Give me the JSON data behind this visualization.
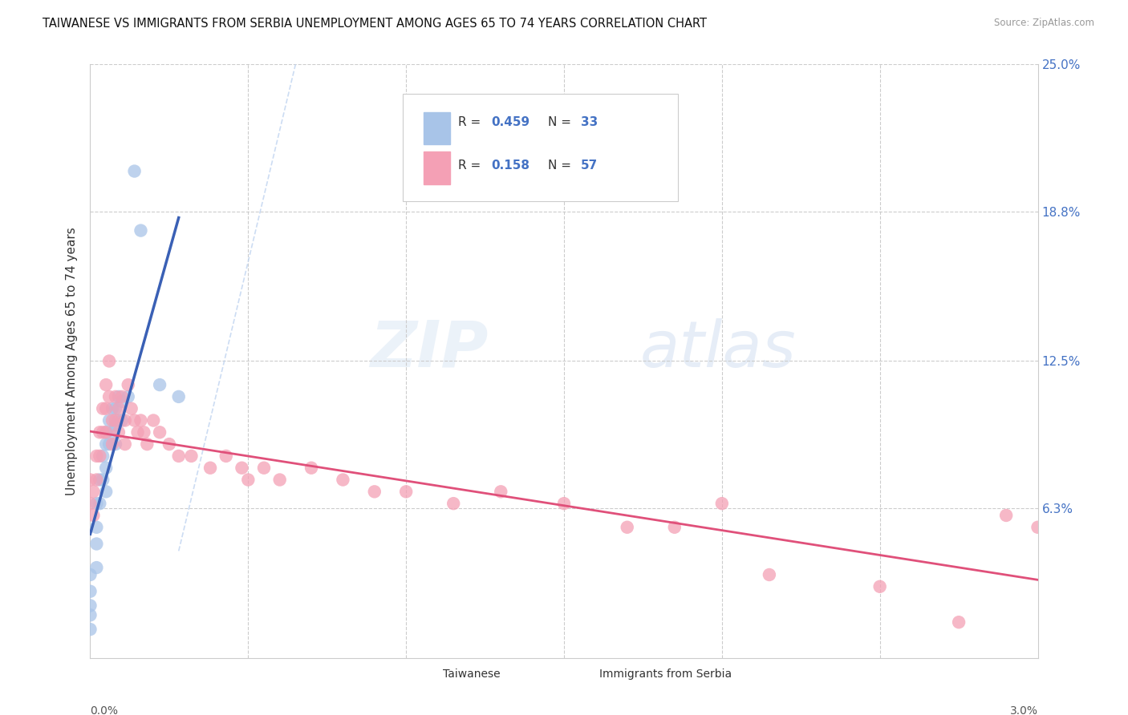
{
  "title": "TAIWANESE VS IMMIGRANTS FROM SERBIA UNEMPLOYMENT AMONG AGES 65 TO 74 YEARS CORRELATION CHART",
  "source": "Source: ZipAtlas.com",
  "ylabel": "Unemployment Among Ages 65 to 74 years",
  "xlim": [
    0.0,
    3.0
  ],
  "ylim": [
    0.0,
    25.0
  ],
  "ytick_vals": [
    0.0,
    6.3,
    12.5,
    18.8,
    25.0
  ],
  "ytick_labels": [
    "",
    "6.3%",
    "12.5%",
    "18.8%",
    "25.0%"
  ],
  "color_taiwanese": "#a8c4e8",
  "color_serbian": "#f4a0b5",
  "color_line_taiwanese": "#3a60b5",
  "color_line_serbian": "#e0507a",
  "color_trendline_dashed": "#c0d4f0",
  "watermark_zip": "ZIP",
  "watermark_atlas": "atlas",
  "taiwanese_x": [
    0.0,
    0.0,
    0.0,
    0.0,
    0.0,
    0.02,
    0.02,
    0.02,
    0.02,
    0.03,
    0.03,
    0.04,
    0.04,
    0.05,
    0.05,
    0.05,
    0.05,
    0.06,
    0.06,
    0.07,
    0.07,
    0.08,
    0.08,
    0.08,
    0.09,
    0.09,
    0.1,
    0.1,
    0.12,
    0.14,
    0.16,
    0.22,
    0.28
  ],
  "taiwanese_y": [
    3.5,
    2.8,
    2.2,
    1.8,
    1.2,
    6.5,
    5.5,
    4.8,
    3.8,
    7.5,
    6.5,
    8.5,
    7.5,
    9.5,
    9.0,
    8.0,
    7.0,
    10.0,
    9.0,
    10.5,
    9.5,
    10.5,
    9.8,
    9.0,
    11.0,
    10.0,
    10.8,
    10.0,
    11.0,
    20.5,
    18.0,
    11.5,
    11.0
  ],
  "serbian_x": [
    0.0,
    0.0,
    0.01,
    0.01,
    0.02,
    0.02,
    0.03,
    0.03,
    0.04,
    0.04,
    0.05,
    0.05,
    0.05,
    0.06,
    0.06,
    0.07,
    0.07,
    0.08,
    0.08,
    0.09,
    0.09,
    0.1,
    0.11,
    0.11,
    0.12,
    0.13,
    0.14,
    0.15,
    0.16,
    0.17,
    0.18,
    0.2,
    0.22,
    0.25,
    0.28,
    0.32,
    0.38,
    0.43,
    0.48,
    0.5,
    0.55,
    0.6,
    0.7,
    0.8,
    0.9,
    1.0,
    1.15,
    1.3,
    1.5,
    1.7,
    1.85,
    2.0,
    2.15,
    2.5,
    2.75,
    2.9,
    3.0
  ],
  "serbian_y": [
    7.5,
    6.5,
    7.0,
    6.0,
    8.5,
    7.5,
    9.5,
    8.5,
    10.5,
    9.5,
    11.5,
    10.5,
    9.5,
    12.5,
    11.0,
    10.0,
    9.0,
    11.0,
    10.0,
    10.5,
    9.5,
    11.0,
    10.0,
    9.0,
    11.5,
    10.5,
    10.0,
    9.5,
    10.0,
    9.5,
    9.0,
    10.0,
    9.5,
    9.0,
    8.5,
    8.5,
    8.0,
    8.5,
    8.0,
    7.5,
    8.0,
    7.5,
    8.0,
    7.5,
    7.0,
    7.0,
    6.5,
    7.0,
    6.5,
    5.5,
    5.5,
    6.5,
    3.5,
    3.0,
    1.5,
    6.0,
    5.5
  ]
}
